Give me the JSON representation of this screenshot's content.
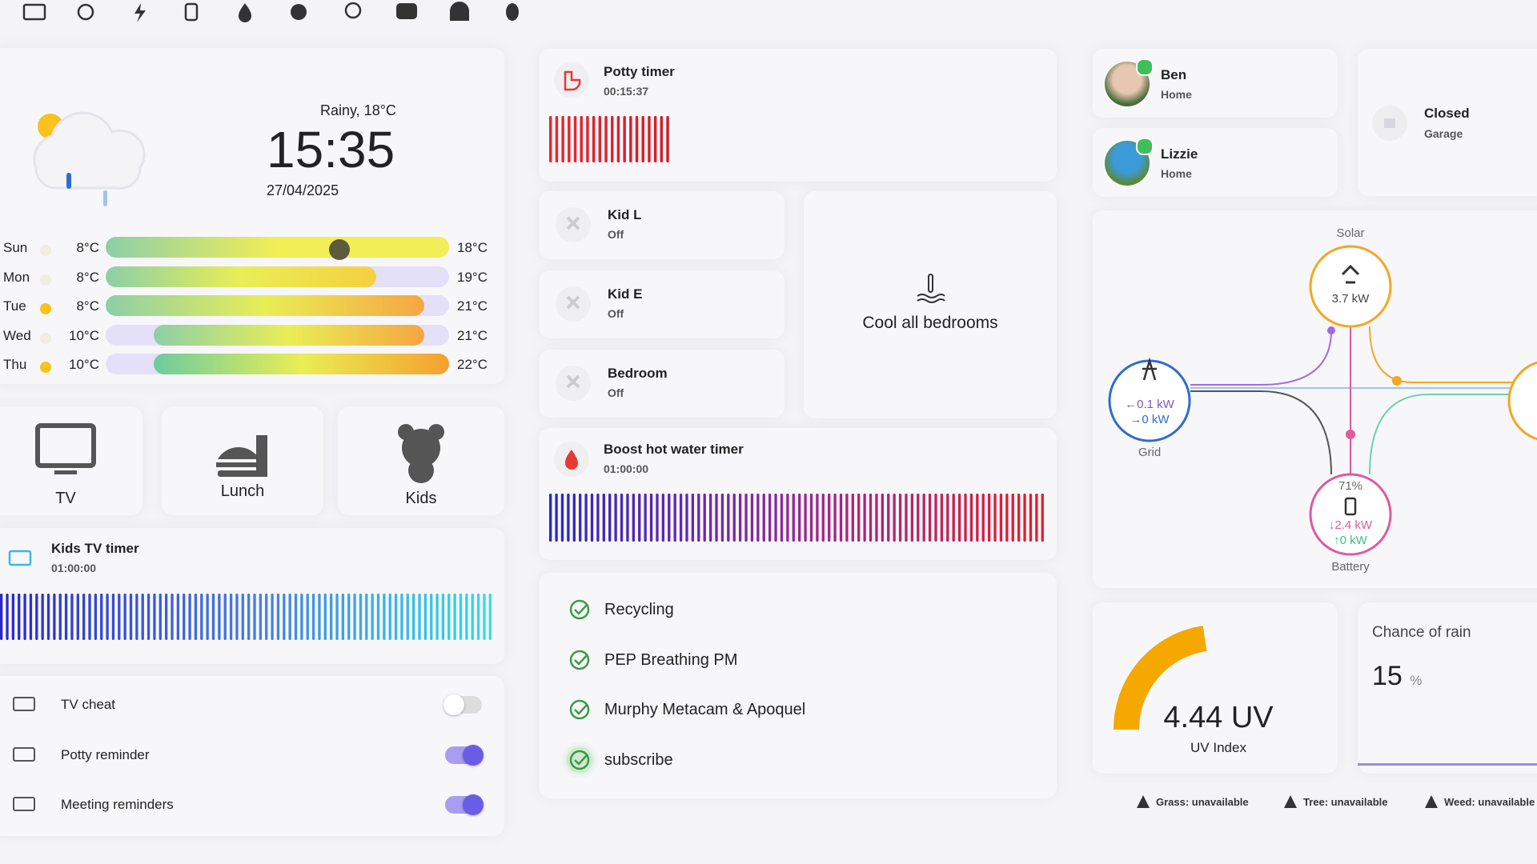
{
  "weather": {
    "condition": "Rainy, 18°C",
    "time": "15:35",
    "date": "27/04/2025",
    "forecast": [
      {
        "day": "Sun",
        "low": "8°C",
        "high": "18°C"
      },
      {
        "day": "Mon",
        "low": "8°C",
        "high": "19°C"
      },
      {
        "day": "Tue",
        "low": "8°C",
        "high": "21°C"
      },
      {
        "day": "Wed",
        "low": "10°C",
        "high": "21°C"
      },
      {
        "day": "Thu",
        "low": "10°C",
        "high": "22°C"
      }
    ]
  },
  "shortcuts": [
    {
      "label": "TV"
    },
    {
      "label": "Lunch"
    },
    {
      "label": "Kids"
    }
  ],
  "kids_tv_timer": {
    "title": "Kids TV timer",
    "time": "01:00:00"
  },
  "toggles": [
    {
      "label": "TV cheat",
      "on": false
    },
    {
      "label": "Potty reminder",
      "on": true
    },
    {
      "label": "Meeting reminders",
      "on": true
    }
  ],
  "potty_timer": {
    "title": "Potty timer",
    "time": "00:15:37"
  },
  "climate": [
    {
      "name": "Kid L",
      "state": "Off"
    },
    {
      "name": "Kid E",
      "state": "Off"
    },
    {
      "name": "Bedroom",
      "state": "Off"
    }
  ],
  "cool_button": "Cool all bedrooms",
  "boost_timer": {
    "title": "Boost hot water timer",
    "time": "01:00:00"
  },
  "todos": [
    "Recycling",
    "PEP Breathing PM",
    "Murphy Metacam & Apoquel",
    "subscribe"
  ],
  "people": [
    {
      "name": "Ben",
      "state": "Home"
    },
    {
      "name": "Lizzie",
      "state": "Home"
    }
  ],
  "garage": {
    "state": "Closed",
    "name": "Garage"
  },
  "energy": {
    "solar": {
      "label": "Solar",
      "power": "3.7 kW"
    },
    "grid": {
      "label": "Grid",
      "import": "←0.1 kW",
      "export": "→0 kW"
    },
    "battery": {
      "label": "Battery",
      "charge": "71%",
      "in": "↓2.4 kW",
      "out": "↑0 kW"
    }
  },
  "uv": {
    "value": "4.44 UV",
    "label": "UV Index"
  },
  "rain": {
    "title": "Chance of rain",
    "value": "15",
    "unit": "%"
  },
  "pollen": [
    "Grass: unavailable",
    "Tree: unavailable",
    "Weed: unavailable"
  ]
}
